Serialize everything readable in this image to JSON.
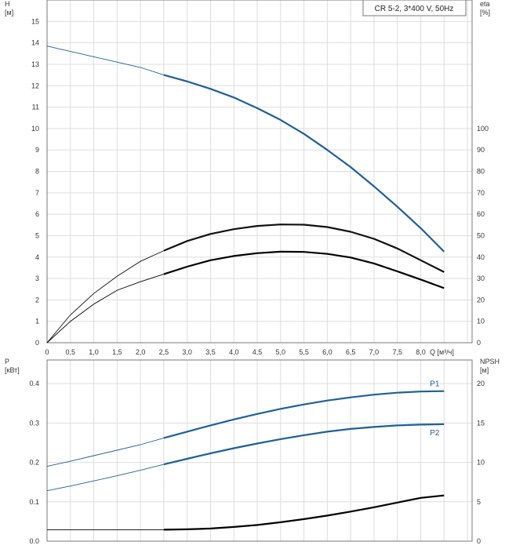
{
  "chart_data": [
    {
      "type": "line",
      "title": "CR 5-2, 3*400 V, 50Hz",
      "xlabel": "Q [м³/ч]",
      "ylabel": "H\n[м]",
      "y2label": "eta\n[%]",
      "xlim": [
        0,
        9.1
      ],
      "ylim": [
        0,
        16
      ],
      "y2lim": [
        0,
        160
      ],
      "x_ticks": [
        "0",
        "0,5",
        "1,0",
        "1,5",
        "2,0",
        "2,5",
        "3,0",
        "3,5",
        "4,0",
        "4,5",
        "5,0",
        "5,5",
        "6,0",
        "6,5",
        "7,0",
        "7,5",
        "8,0"
      ],
      "y_ticks": [
        "0",
        "1",
        "2",
        "3",
        "4",
        "5",
        "6",
        "7",
        "8",
        "9",
        "10",
        "11",
        "12",
        "13",
        "14",
        "15"
      ],
      "y2_ticks": [
        "0",
        "10",
        "20",
        "30",
        "40",
        "50",
        "60",
        "70",
        "80",
        "90",
        "100"
      ],
      "grid": true,
      "series": [
        {
          "axis": "y",
          "color": "#1f5f99",
          "points": [
            [
              0,
              13.85
            ],
            [
              0.5,
              13.6
            ],
            [
              1.0,
              13.35
            ],
            [
              1.5,
              13.1
            ],
            [
              2.0,
              12.85
            ],
            [
              2.5,
              12.5
            ],
            [
              3.0,
              12.2
            ],
            [
              3.5,
              11.85
            ],
            [
              4.0,
              11.45
            ],
            [
              4.5,
              10.95
            ],
            [
              5.0,
              10.4
            ],
            [
              5.5,
              9.75
            ],
            [
              6.0,
              9.0
            ],
            [
              6.5,
              8.2
            ],
            [
              7.0,
              7.3
            ],
            [
              7.5,
              6.35
            ],
            [
              8.0,
              5.35
            ],
            [
              8.5,
              4.25
            ]
          ]
        },
        {
          "axis": "y2",
          "color": "#111111",
          "points": [
            [
              0,
              0
            ],
            [
              0.5,
              13
            ],
            [
              1.0,
              23
            ],
            [
              1.5,
              31
            ],
            [
              2.0,
              38
            ],
            [
              2.5,
              43
            ],
            [
              3.0,
              47.5
            ],
            [
              3.5,
              50.8
            ],
            [
              4.0,
              53
            ],
            [
              4.5,
              54.5
            ],
            [
              5.0,
              55.2
            ],
            [
              5.5,
              55.1
            ],
            [
              6.0,
              54
            ],
            [
              6.5,
              51.8
            ],
            [
              7.0,
              48.5
            ],
            [
              7.5,
              44
            ],
            [
              8.0,
              38.5
            ],
            [
              8.5,
              33
            ]
          ]
        },
        {
          "axis": "y2",
          "color": "#000000",
          "points": [
            [
              0,
              0
            ],
            [
              0.5,
              10
            ],
            [
              1.0,
              18
            ],
            [
              1.5,
              24.5
            ],
            [
              2.0,
              28.5
            ],
            [
              2.5,
              32
            ],
            [
              3.0,
              35.5
            ],
            [
              3.5,
              38.5
            ],
            [
              4.0,
              40.5
            ],
            [
              4.5,
              41.8
            ],
            [
              5.0,
              42.5
            ],
            [
              5.5,
              42.4
            ],
            [
              6.0,
              41.5
            ],
            [
              6.5,
              39.8
            ],
            [
              7.0,
              37
            ],
            [
              7.5,
              33.3
            ],
            [
              8.0,
              29.5
            ],
            [
              8.5,
              25.5
            ]
          ]
        }
      ]
    },
    {
      "type": "line",
      "xlim": [
        0,
        9.1
      ],
      "ylabel": "P\n[кВт]",
      "y2label": "NPSH\n[м]",
      "ylim": [
        0,
        0.46
      ],
      "y2lim": [
        0,
        23
      ],
      "y_ticks": [
        "0.0",
        "0.1",
        "0.2",
        "0.3",
        "0.4"
      ],
      "y2_ticks": [
        "0",
        "5",
        "10",
        "15",
        "20"
      ],
      "grid": true,
      "series": [
        {
          "name": "P1",
          "axis": "y",
          "color": "#1f5f99",
          "points": [
            [
              0,
              0.19
            ],
            [
              0.5,
              0.203
            ],
            [
              1.0,
              0.217
            ],
            [
              1.5,
              0.231
            ],
            [
              2.0,
              0.245
            ],
            [
              2.5,
              0.262
            ],
            [
              3.0,
              0.278
            ],
            [
              3.5,
              0.294
            ],
            [
              4.0,
              0.309
            ],
            [
              4.5,
              0.323
            ],
            [
              5.0,
              0.336
            ],
            [
              5.5,
              0.347
            ],
            [
              6.0,
              0.357
            ],
            [
              6.5,
              0.365
            ],
            [
              7.0,
              0.372
            ],
            [
              7.5,
              0.377
            ],
            [
              8.0,
              0.38
            ],
            [
              8.5,
              0.381
            ]
          ]
        },
        {
          "name": "P2",
          "axis": "y",
          "color": "#1f5f99",
          "points": [
            [
              0,
              0.128
            ],
            [
              0.5,
              0.14
            ],
            [
              1.0,
              0.153
            ],
            [
              1.5,
              0.166
            ],
            [
              2.0,
              0.18
            ],
            [
              2.5,
              0.195
            ],
            [
              3.0,
              0.209
            ],
            [
              3.5,
              0.223
            ],
            [
              4.0,
              0.236
            ],
            [
              4.5,
              0.248
            ],
            [
              5.0,
              0.259
            ],
            [
              5.5,
              0.269
            ],
            [
              6.0,
              0.278
            ],
            [
              6.5,
              0.285
            ],
            [
              7.0,
              0.29
            ],
            [
              7.5,
              0.294
            ],
            [
              8.0,
              0.296
            ],
            [
              8.5,
              0.297
            ]
          ]
        },
        {
          "axis": "y2",
          "color": "#000000",
          "points": [
            [
              0,
              1.45
            ],
            [
              1.0,
              1.45
            ],
            [
              2.0,
              1.45
            ],
            [
              2.5,
              1.45
            ],
            [
              3.0,
              1.5
            ],
            [
              3.5,
              1.6
            ],
            [
              4.0,
              1.8
            ],
            [
              4.5,
              2.05
            ],
            [
              5.0,
              2.4
            ],
            [
              5.5,
              2.8
            ],
            [
              6.0,
              3.25
            ],
            [
              6.5,
              3.75
            ],
            [
              7.0,
              4.3
            ],
            [
              7.5,
              4.9
            ],
            [
              8.0,
              5.5
            ],
            [
              8.5,
              5.8
            ]
          ]
        }
      ]
    }
  ]
}
